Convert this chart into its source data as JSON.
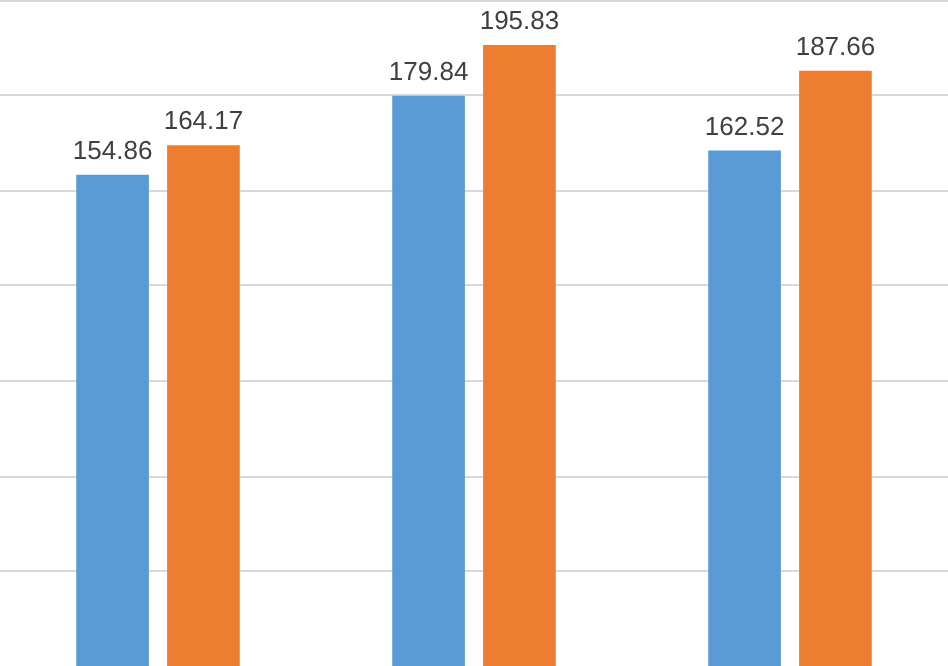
{
  "chart_data": {
    "type": "bar",
    "categories": [
      null,
      null,
      null
    ],
    "series": [
      {
        "color": "#5b9bd5",
        "values": [
          154.86,
          179.84,
          162.52
        ]
      },
      {
        "color": "#ed7d31",
        "values": [
          164.17,
          195.83,
          187.66
        ]
      }
    ],
    "grid": "y",
    "tick_labels": false,
    "data_labels": true
  }
}
